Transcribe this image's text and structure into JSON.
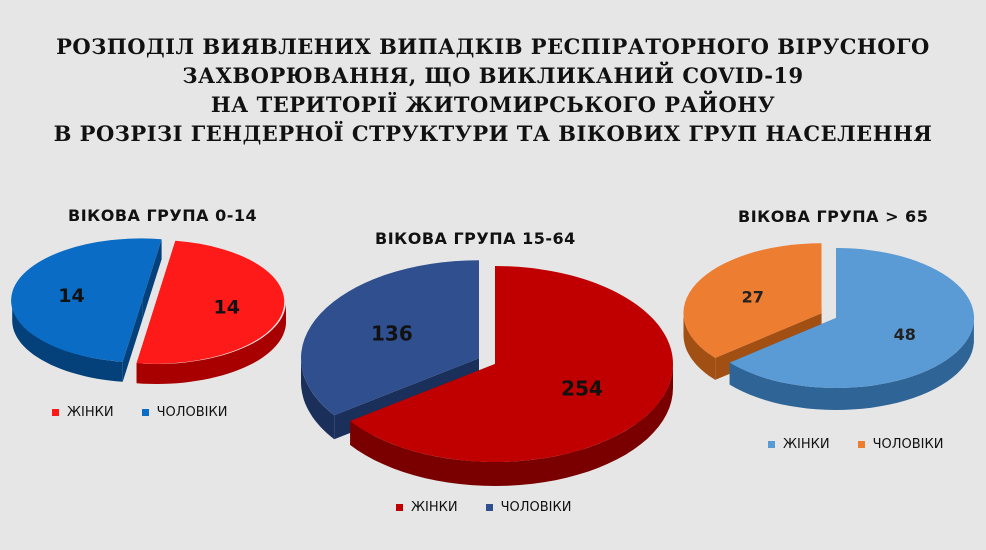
{
  "title_lines": [
    "РОЗПОДІЛ ВИЯВЛЕНИХ ВИПАДКІВ РЕСПІРАТОРНОГО ВІРУСНОГО",
    "ЗАХВОРЮВАННЯ, ЩО ВИКЛИКАНИЙ COVID-19",
    "НА ТЕРИТОРІЇ ЖИТОМИРСЬКОГО РАЙОНУ",
    "В РОЗРІЗІ ГЕНДЕРНОЇ СТРУКТУРИ ТА ВІКОВИХ ГРУП НАСЕЛЕННЯ"
  ],
  "chart_data": [
    {
      "type": "pie",
      "title": "ВІКОВА ГРУПА 0-14",
      "categories": [
        "ЖІНКИ",
        "ЧОЛОВІКИ"
      ],
      "values": [
        14,
        14
      ],
      "colors": [
        "#ff1a1a",
        "#0a6cc4"
      ],
      "side_colors": [
        "#a80000",
        "#04407a"
      ],
      "label_colors": [
        "#111111",
        "#111111"
      ],
      "exploded": "ЧОЛОВІКИ",
      "legend_position": "bottom"
    },
    {
      "type": "pie",
      "title": "ВІКОВА ГРУПА 15-64",
      "categories": [
        "ЖІНКИ",
        "ЧОЛОВІКИ"
      ],
      "values": [
        254,
        136
      ],
      "colors": [
        "#c00000",
        "#2f4f8f"
      ],
      "side_colors": [
        "#7a0000",
        "#1a2f5a"
      ],
      "label_colors": [
        "#111111",
        "#111111"
      ],
      "exploded": "ЧОЛОВІКИ",
      "legend_position": "bottom"
    },
    {
      "type": "pie",
      "title": "ВІКОВА ГРУПА > 65",
      "categories": [
        "ЖІНКИ",
        "ЧОЛОВІКИ"
      ],
      "values": [
        48,
        27
      ],
      "colors": [
        "#5b9bd5",
        "#ed7d31"
      ],
      "side_colors": [
        "#2f6496",
        "#a24f14"
      ],
      "label_colors": [
        "#222222",
        "#222222"
      ],
      "exploded": "ЧОЛОВІКИ",
      "legend_position": "bottom-right"
    }
  ]
}
